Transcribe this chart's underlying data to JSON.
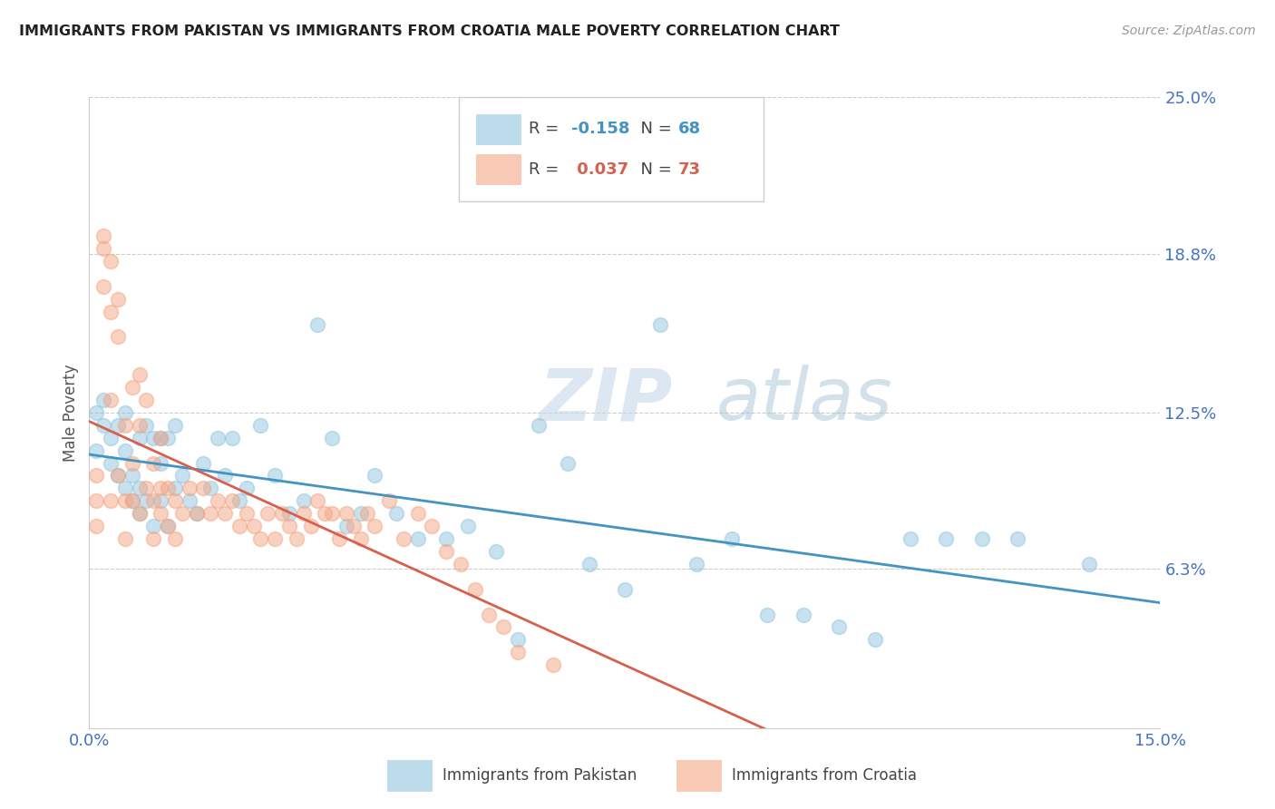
{
  "title": "IMMIGRANTS FROM PAKISTAN VS IMMIGRANTS FROM CROATIA MALE POVERTY CORRELATION CHART",
  "source": "Source: ZipAtlas.com",
  "ylabel": "Male Poverty",
  "xlim": [
    0.0,
    0.15
  ],
  "ylim": [
    0.0,
    0.25
  ],
  "x_ticks": [
    0.0,
    0.03,
    0.06,
    0.09,
    0.12,
    0.15
  ],
  "x_tick_labels": [
    "0.0%",
    "",
    "",
    "",
    "",
    "15.0%"
  ],
  "y_tick_labels_right": [
    "25.0%",
    "18.8%",
    "12.5%",
    "6.3%"
  ],
  "y_ticks_right": [
    0.25,
    0.188,
    0.125,
    0.063
  ],
  "pakistan_R": -0.158,
  "pakistan_N": 68,
  "croatia_R": 0.037,
  "croatia_N": 73,
  "pakistan_color": "#92c5de",
  "croatia_color": "#f4a582",
  "pakistan_line_color": "#4393c3",
  "croatia_line_color": "#d6604d",
  "watermark": "ZIPatlas",
  "pakistan_x": [
    0.001,
    0.001,
    0.002,
    0.002,
    0.003,
    0.003,
    0.004,
    0.004,
    0.005,
    0.005,
    0.005,
    0.006,
    0.006,
    0.007,
    0.007,
    0.007,
    0.008,
    0.008,
    0.009,
    0.009,
    0.01,
    0.01,
    0.01,
    0.011,
    0.011,
    0.012,
    0.012,
    0.013,
    0.014,
    0.015,
    0.016,
    0.017,
    0.018,
    0.019,
    0.02,
    0.021,
    0.022,
    0.024,
    0.026,
    0.028,
    0.03,
    0.032,
    0.034,
    0.036,
    0.038,
    0.04,
    0.043,
    0.046,
    0.05,
    0.053,
    0.057,
    0.06,
    0.063,
    0.067,
    0.07,
    0.075,
    0.08,
    0.085,
    0.09,
    0.095,
    0.1,
    0.105,
    0.11,
    0.115,
    0.12,
    0.125,
    0.13,
    0.14
  ],
  "pakistan_y": [
    0.125,
    0.11,
    0.13,
    0.12,
    0.115,
    0.105,
    0.12,
    0.1,
    0.125,
    0.095,
    0.11,
    0.1,
    0.09,
    0.115,
    0.095,
    0.085,
    0.12,
    0.09,
    0.115,
    0.08,
    0.115,
    0.105,
    0.09,
    0.115,
    0.08,
    0.12,
    0.095,
    0.1,
    0.09,
    0.085,
    0.105,
    0.095,
    0.115,
    0.1,
    0.115,
    0.09,
    0.095,
    0.12,
    0.1,
    0.085,
    0.09,
    0.16,
    0.115,
    0.08,
    0.085,
    0.1,
    0.085,
    0.075,
    0.075,
    0.08,
    0.07,
    0.035,
    0.12,
    0.105,
    0.065,
    0.055,
    0.16,
    0.065,
    0.075,
    0.045,
    0.045,
    0.04,
    0.035,
    0.075,
    0.075,
    0.075,
    0.075,
    0.065
  ],
  "croatia_x": [
    0.001,
    0.001,
    0.001,
    0.002,
    0.002,
    0.002,
    0.003,
    0.003,
    0.003,
    0.003,
    0.004,
    0.004,
    0.004,
    0.005,
    0.005,
    0.005,
    0.006,
    0.006,
    0.006,
    0.007,
    0.007,
    0.007,
    0.008,
    0.008,
    0.009,
    0.009,
    0.009,
    0.01,
    0.01,
    0.01,
    0.011,
    0.011,
    0.012,
    0.012,
    0.013,
    0.014,
    0.015,
    0.016,
    0.017,
    0.018,
    0.019,
    0.02,
    0.021,
    0.022,
    0.023,
    0.024,
    0.025,
    0.026,
    0.027,
    0.028,
    0.029,
    0.03,
    0.031,
    0.032,
    0.033,
    0.034,
    0.035,
    0.036,
    0.037,
    0.038,
    0.039,
    0.04,
    0.042,
    0.044,
    0.046,
    0.048,
    0.05,
    0.052,
    0.054,
    0.056,
    0.058,
    0.06,
    0.065
  ],
  "croatia_y": [
    0.1,
    0.09,
    0.08,
    0.19,
    0.195,
    0.175,
    0.185,
    0.165,
    0.13,
    0.09,
    0.17,
    0.155,
    0.1,
    0.12,
    0.09,
    0.075,
    0.135,
    0.105,
    0.09,
    0.14,
    0.12,
    0.085,
    0.13,
    0.095,
    0.105,
    0.09,
    0.075,
    0.115,
    0.095,
    0.085,
    0.095,
    0.08,
    0.09,
    0.075,
    0.085,
    0.095,
    0.085,
    0.095,
    0.085,
    0.09,
    0.085,
    0.09,
    0.08,
    0.085,
    0.08,
    0.075,
    0.085,
    0.075,
    0.085,
    0.08,
    0.075,
    0.085,
    0.08,
    0.09,
    0.085,
    0.085,
    0.075,
    0.085,
    0.08,
    0.075,
    0.085,
    0.08,
    0.09,
    0.075,
    0.085,
    0.08,
    0.07,
    0.065,
    0.055,
    0.045,
    0.04,
    0.03,
    0.025
  ]
}
